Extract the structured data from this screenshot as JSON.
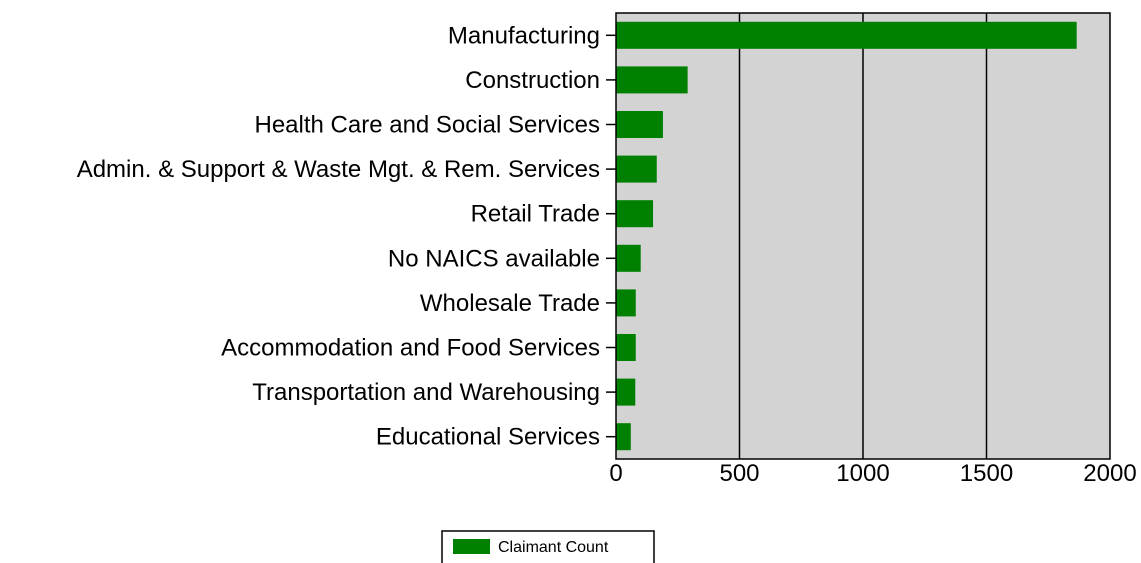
{
  "chart_data": {
    "type": "bar",
    "orientation": "horizontal",
    "categories": [
      "Manufacturing",
      "Construction",
      "Health Care and Social Services",
      "Admin. & Support & Waste Mgt. & Rem. Services",
      "Retail Trade",
      "No NAICS available",
      "Wholesale Trade",
      "Accommodation and Food Services",
      "Transportation and Warehousing",
      "Educational Services"
    ],
    "series": [
      {
        "name": "Claimant Count",
        "color": "#008000",
        "values": [
          1865,
          290,
          190,
          165,
          150,
          100,
          80,
          80,
          78,
          60
        ]
      }
    ],
    "xticks": [
      "0",
      "500",
      "1000",
      "1500",
      "2000"
    ],
    "xlim": [
      0,
      2000
    ],
    "grid": "vertical",
    "plot_background": "#d3d3d3",
    "legend_position": "bottom-center"
  }
}
